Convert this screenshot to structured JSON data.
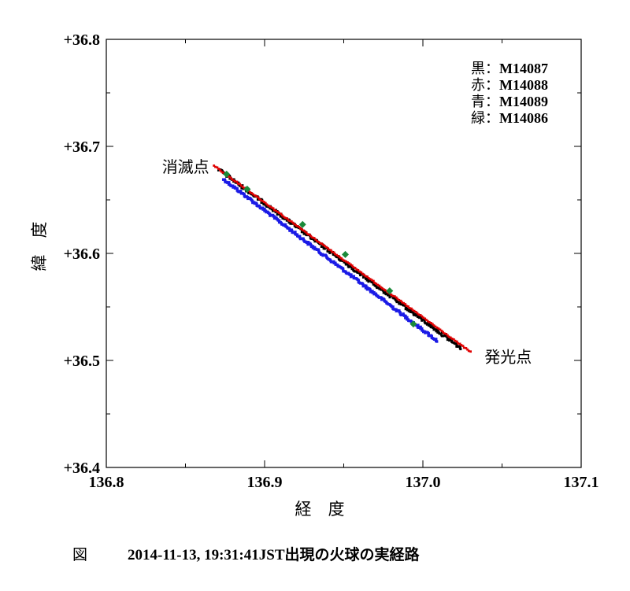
{
  "chart_data": {
    "type": "scatter",
    "xlabel": "経　度",
    "ylabel": "緯　度",
    "xlim": [
      136.8,
      137.1
    ],
    "ylim": [
      36.4,
      36.8
    ],
    "x_ticks": [
      136.8,
      136.9,
      137.0,
      137.1
    ],
    "x_tick_labels": [
      "136.8",
      "136.9",
      "137.0",
      "137.1"
    ],
    "y_ticks": [
      36.4,
      36.5,
      36.6,
      36.7,
      36.8
    ],
    "y_tick_labels": [
      "+36.4",
      "+36.5",
      "+36.6",
      "+36.7",
      "+36.8"
    ],
    "legend_position": "top-right",
    "legend": [
      {
        "prefix": "黒",
        "label": "M14087",
        "color": "#000000"
      },
      {
        "prefix": "赤",
        "label": "M14088",
        "color": "#e00000"
      },
      {
        "prefix": "青",
        "label": "M14089",
        "color": "#1a1ae6"
      },
      {
        "prefix": "緑",
        "label": "M14086",
        "color": "#1a8a3a"
      }
    ],
    "annotations": [
      {
        "text": "消滅点",
        "x": 136.869,
        "y": 36.681
      },
      {
        "text": "発光点",
        "x": 137.025,
        "y": 36.51
      }
    ],
    "series": [
      {
        "label": "M14087",
        "color": "#000000",
        "start": [
          136.871,
          36.678
        ],
        "end": [
          137.024,
          36.511
        ]
      },
      {
        "label": "M14088",
        "color": "#e00000",
        "start": [
          136.868,
          36.682
        ],
        "end": [
          137.03,
          36.508
        ]
      },
      {
        "label": "M14089",
        "color": "#1a1ae6",
        "start": [
          136.875,
          36.671
        ],
        "end": [
          137.01,
          36.52
        ]
      },
      {
        "label": "M14086",
        "color": "#1a8a3a",
        "points": [
          [
            136.876,
            36.674
          ],
          [
            136.889,
            36.66
          ],
          [
            136.924,
            36.627
          ],
          [
            136.951,
            36.599
          ],
          [
            136.979,
            36.565
          ],
          [
            136.994,
            36.534
          ]
        ]
      }
    ]
  },
  "caption": {
    "figure_label": "図",
    "text": "2014-11-13, 19:31:41JST出現の火球の実経路"
  }
}
